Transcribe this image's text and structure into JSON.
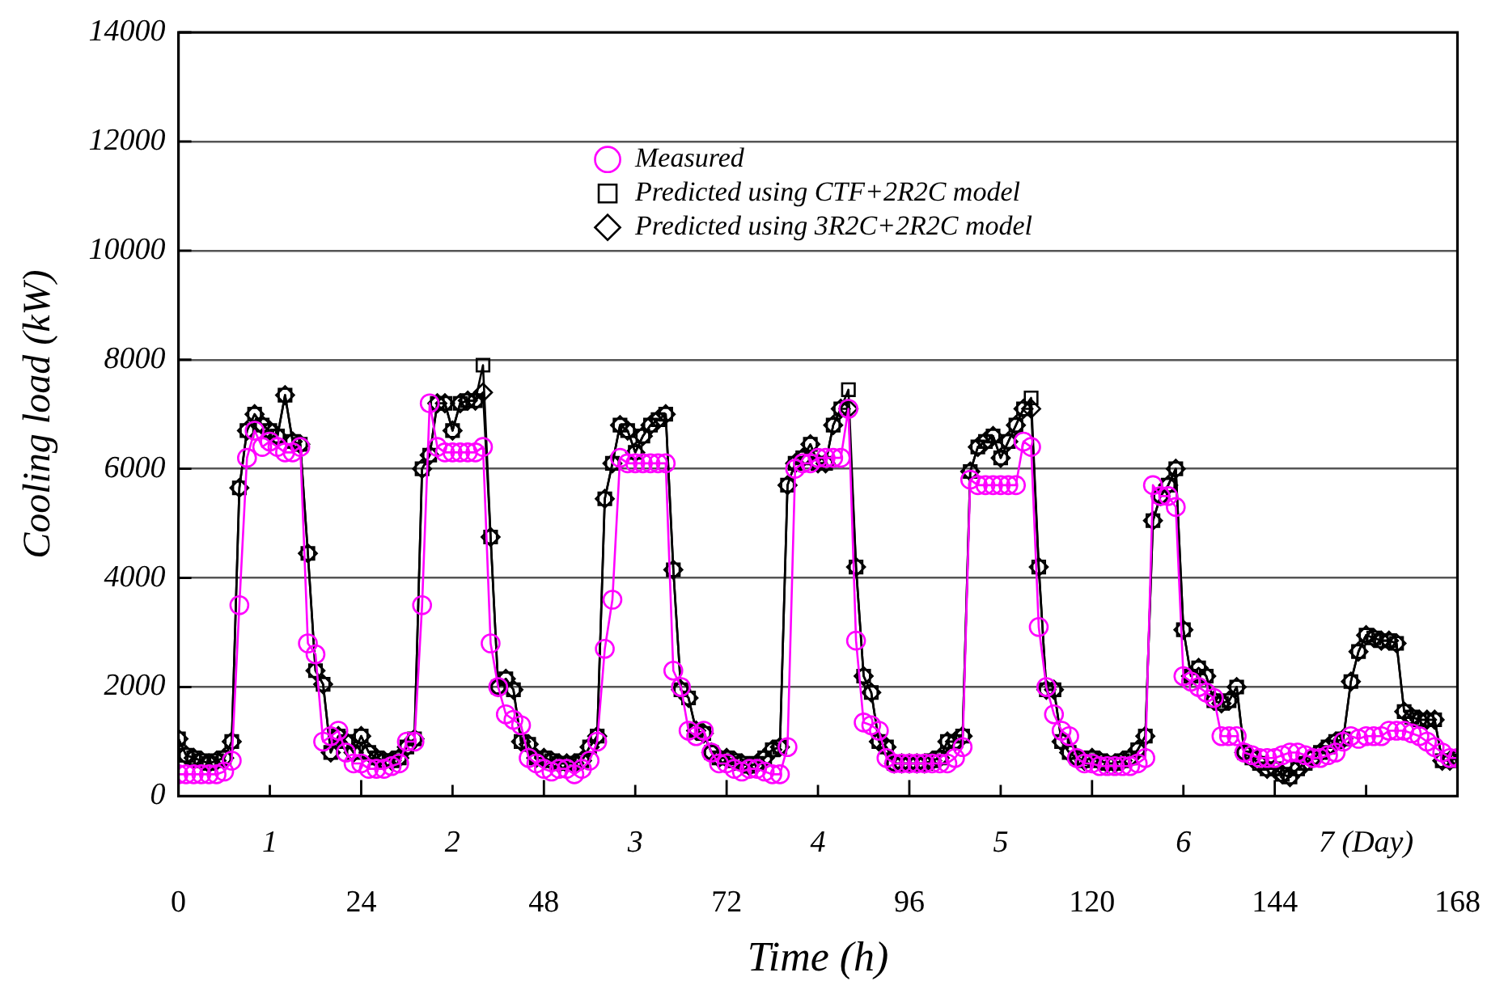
{
  "chart_data": {
    "type": "line",
    "xlabel": "Time (h)",
    "ylabel": "Cooling load (kW)",
    "xlim": [
      0,
      168
    ],
    "xticks": [
      0,
      24,
      48,
      72,
      96,
      120,
      144,
      168
    ],
    "x2lim": [
      0.5,
      7.5
    ],
    "x2ticks": [
      1,
      2,
      3,
      4,
      5,
      6,
      {
        "value": 7,
        "label": "7 (Day)"
      }
    ],
    "ylim": [
      0,
      14000
    ],
    "yticks": [
      0,
      2000,
      4000,
      6000,
      8000,
      10000,
      12000,
      14000
    ],
    "grid": "y",
    "legend": "top",
    "line_style": "solid",
    "x": [
      0,
      1,
      2,
      3,
      4,
      5,
      6,
      7,
      8,
      9,
      10,
      11,
      12,
      13,
      14,
      15,
      16,
      17,
      18,
      19,
      20,
      21,
      22,
      23,
      24,
      25,
      26,
      27,
      28,
      29,
      30,
      31,
      32,
      33,
      34,
      35,
      36,
      37,
      38,
      39,
      40,
      41,
      42,
      43,
      44,
      45,
      46,
      47,
      48,
      49,
      50,
      51,
      52,
      53,
      54,
      55,
      56,
      57,
      58,
      59,
      60,
      61,
      62,
      63,
      64,
      65,
      66,
      67,
      68,
      69,
      70,
      71,
      72,
      73,
      74,
      75,
      76,
      77,
      78,
      79,
      80,
      81,
      82,
      83,
      84,
      85,
      86,
      87,
      88,
      89,
      90,
      91,
      92,
      93,
      94,
      95,
      96,
      97,
      98,
      99,
      100,
      101,
      102,
      103,
      104,
      105,
      106,
      107,
      108,
      109,
      110,
      111,
      112,
      113,
      114,
      115,
      116,
      117,
      118,
      119,
      120,
      121,
      122,
      123,
      124,
      125,
      126,
      127,
      128,
      129,
      130,
      131,
      132,
      133,
      134,
      135,
      136,
      137,
      138,
      139,
      140,
      141,
      142,
      143,
      144,
      145,
      146,
      147,
      148,
      149,
      150,
      151,
      152,
      153,
      154,
      155,
      156,
      157,
      158,
      159,
      160,
      161,
      162,
      163,
      164,
      165,
      166,
      167,
      168
    ],
    "series": [
      {
        "name": "Measured",
        "color": "#ff00ff",
        "marker": "circle",
        "values": [
          400,
          400,
          400,
          400,
          400,
          400,
          450,
          650,
          3500,
          6200,
          6700,
          6400,
          6500,
          6400,
          6300,
          6300,
          6400,
          2800,
          2600,
          1000,
          1100,
          1200,
          800,
          600,
          600,
          500,
          500,
          500,
          550,
          600,
          1000,
          1000,
          3500,
          7200,
          6400,
          6300,
          6300,
          6300,
          6300,
          6300,
          6400,
          2800,
          2000,
          1500,
          1400,
          1300,
          700,
          600,
          500,
          450,
          500,
          500,
          400,
          500,
          650,
          1000,
          2700,
          3600,
          6200,
          6100,
          6100,
          6100,
          6100,
          6100,
          6100,
          2300,
          2000,
          1200,
          1100,
          1200,
          800,
          600,
          600,
          500,
          450,
          500,
          500,
          450,
          400,
          400,
          900,
          6000,
          6100,
          6100,
          6200,
          6200,
          6200,
          6200,
          7100,
          2850,
          1350,
          1300,
          1200,
          700,
          600,
          600,
          600,
          600,
          600,
          600,
          600,
          600,
          700,
          900,
          5800,
          5700,
          5700,
          5700,
          5700,
          5700,
          5700,
          6500,
          6400,
          3100,
          2000,
          1500,
          1200,
          1100,
          700,
          600,
          600,
          550,
          550,
          550,
          550,
          550,
          600,
          700,
          5700,
          5500,
          5500,
          5300,
          2200,
          2100,
          2000,
          1900,
          1800,
          1100,
          1100,
          1100,
          800,
          750,
          700,
          700,
          700,
          750,
          800,
          800,
          750,
          700,
          700,
          750,
          800,
          1000,
          1100,
          1050,
          1100,
          1100,
          1100,
          1200,
          1200,
          1200,
          1150,
          1100,
          1000,
          900,
          800,
          700,
          700
        ]
      },
      {
        "name": "Predicted using CTF+2R2C model",
        "color": "#000000",
        "marker": "square",
        "values": [
          1050,
          750,
          700,
          650,
          600,
          650,
          700,
          1000,
          5650,
          6700,
          7000,
          6800,
          6700,
          6600,
          7350,
          6500,
          6450,
          4450,
          2300,
          2050,
          800,
          1100,
          1000,
          800,
          1100,
          800,
          700,
          650,
          650,
          700,
          900,
          1050,
          6000,
          6250,
          7200,
          7200,
          6700,
          7200,
          7250,
          7250,
          7900,
          4750,
          2000,
          2150,
          1950,
          1000,
          950,
          700,
          700,
          650,
          600,
          600,
          600,
          650,
          900,
          1100,
          5450,
          6100,
          6800,
          6700,
          6300,
          6600,
          6800,
          6900,
          7000,
          4150,
          1950,
          1800,
          1200,
          1150,
          800,
          700,
          700,
          650,
          600,
          550,
          600,
          700,
          850,
          900,
          5700,
          6100,
          6200,
          6450,
          6100,
          6100,
          6800,
          7100,
          7450,
          4200,
          2200,
          1900,
          1000,
          900,
          600,
          600,
          600,
          600,
          600,
          650,
          700,
          1000,
          1000,
          1100,
          5950,
          6400,
          6500,
          6600,
          6200,
          6500,
          6800,
          7100,
          7300,
          4200,
          1950,
          1950,
          1000,
          800,
          700,
          650,
          700,
          650,
          600,
          600,
          650,
          700,
          850,
          1100,
          5050,
          5500,
          5700,
          6000,
          3050,
          2200,
          2350,
          2200,
          1750,
          1700,
          1750,
          2000,
          800,
          700,
          600,
          500,
          500,
          400,
          350,
          500,
          600,
          700,
          800,
          900,
          1000,
          1050,
          2100,
          2650,
          2950,
          2900,
          2850,
          2850,
          2800,
          1550,
          1450,
          1400,
          1400,
          1400,
          650,
          650,
          700
        ]
      },
      {
        "name": "Predicted using 3R2C+2R2C model",
        "color": "#000000",
        "marker": "diamond",
        "values": [
          1050,
          750,
          700,
          650,
          600,
          650,
          700,
          1000,
          5650,
          6700,
          7000,
          6800,
          6700,
          6600,
          7350,
          6500,
          6450,
          4450,
          2300,
          2050,
          800,
          1100,
          1000,
          800,
          1100,
          800,
          700,
          650,
          650,
          700,
          900,
          1050,
          6000,
          6250,
          7200,
          7200,
          6700,
          7200,
          7250,
          7250,
          7400,
          4750,
          2000,
          2150,
          1950,
          1000,
          950,
          700,
          700,
          650,
          600,
          600,
          600,
          650,
          900,
          1100,
          5450,
          6100,
          6800,
          6700,
          6300,
          6600,
          6800,
          6900,
          7000,
          4150,
          1950,
          1800,
          1200,
          1150,
          800,
          700,
          700,
          650,
          600,
          550,
          600,
          700,
          850,
          900,
          5700,
          6100,
          6200,
          6450,
          6100,
          6100,
          6800,
          7100,
          7100,
          4200,
          2200,
          1900,
          1000,
          900,
          600,
          600,
          600,
          600,
          600,
          650,
          700,
          1000,
          1000,
          1100,
          5950,
          6400,
          6500,
          6600,
          6200,
          6500,
          6800,
          7100,
          7100,
          4200,
          1950,
          1950,
          1000,
          800,
          700,
          650,
          700,
          650,
          600,
          600,
          650,
          700,
          850,
          1100,
          5050,
          5500,
          5700,
          6000,
          3050,
          2200,
          2350,
          2200,
          1750,
          1700,
          1750,
          2000,
          800,
          700,
          600,
          500,
          500,
          400,
          350,
          500,
          600,
          700,
          800,
          900,
          1000,
          1050,
          2100,
          2650,
          2950,
          2900,
          2850,
          2850,
          2800,
          1550,
          1450,
          1400,
          1400,
          1400,
          650,
          650,
          700
        ]
      }
    ]
  }
}
